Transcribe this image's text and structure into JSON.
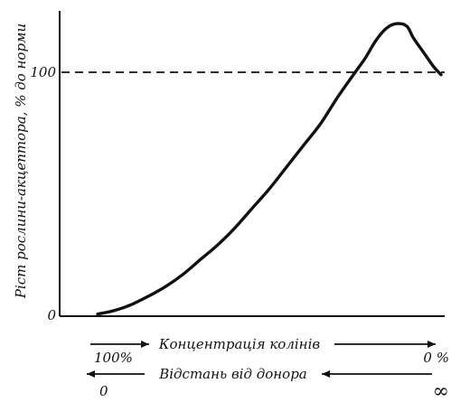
{
  "chart_data": {
    "type": "line",
    "ylabel": "Ріст рослини-акцептора, % до норми",
    "y_ticks": [
      {
        "value": 0,
        "label": "0"
      },
      {
        "value": 100,
        "label": "100"
      }
    ],
    "ylim": [
      0,
      125
    ],
    "xlim": [
      0,
      100
    ],
    "grid": false,
    "x_axes": [
      {
        "label": "Концентрація колінів",
        "left": "100%",
        "right": "0 %",
        "direction": "right"
      },
      {
        "label": "Відстань від донора",
        "left": "0",
        "right": "∞",
        "direction": "left"
      }
    ],
    "reference_line": {
      "y": 100,
      "style": "dashed"
    },
    "series": [
      {
        "x": [
          0,
          5,
          10,
          15,
          20,
          25,
          30,
          35,
          40,
          45,
          50,
          55,
          60,
          65,
          70,
          75,
          78,
          81,
          84,
          87,
          90,
          92,
          95,
          98,
          100
        ],
        "y": [
          0.5,
          2,
          4.5,
          8,
          12,
          17,
          23,
          29,
          36,
          44,
          52,
          61,
          70,
          79,
          90,
          100,
          106,
          113,
          118,
          120,
          119,
          114,
          108,
          102,
          99
        ]
      }
    ]
  }
}
